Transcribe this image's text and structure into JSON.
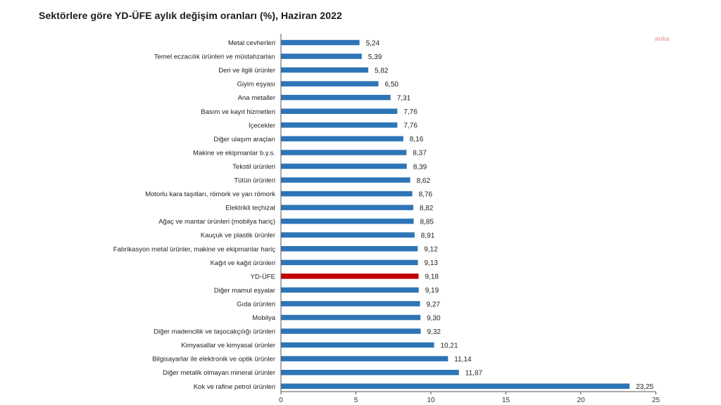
{
  "watermark": "anka",
  "chart_data": {
    "type": "bar",
    "orientation": "horizontal",
    "title": "Sektörlere göre YD-ÜFE aylık değişim oranları (%), Haziran 2022",
    "xlabel": "",
    "ylabel": "",
    "xlim": [
      0,
      25
    ],
    "xticks": [
      0,
      5,
      10,
      15,
      20,
      25
    ],
    "grid": false,
    "colors": {
      "default": "#2e75b6",
      "highlight": "#c00000"
    },
    "highlight_category": "YD-ÜFE",
    "categories": [
      "Metal cevherleri",
      "Temel eczacılık ürünleri ve müstahzarları",
      "Deri ve ilgili ürünler",
      "Giyim eşyası",
      "Ana metaller",
      "Basım ve kayıt hizmetleri",
      "İçecekler",
      "Diğer ulaşım araçları",
      "Makine ve ekipmanlar b.y.s.",
      "Tekstil ürünleri",
      "Tütün ürünleri",
      "Motorlu kara taşıtları, römork ve yarı römork",
      "Elektrikli teçhizat",
      "Ağaç ve mantar ürünleri (mobilya hariç)",
      "Kauçuk ve plastik ürünler",
      "Fabrikasyon metal ürünler, makine ve ekipmanlar hariç",
      "Kağıt ve kağıt ürünleri",
      "YD-ÜFE",
      "Diğer mamul eşyalar",
      "Gıda ürünleri",
      "Mobilya",
      "Diğer madencilik ve taşocakçılığı ürünleri",
      "Kimyasallar ve kimyasal ürünler",
      "Bilgisayarlar ile elektronik ve optik ürünler",
      "Diğer metalik olmayan mineral ürünler",
      "Kok ve rafine petrol ürünleri"
    ],
    "values": [
      5.24,
      5.39,
      5.82,
      6.5,
      7.31,
      7.76,
      7.76,
      8.16,
      8.37,
      8.39,
      8.62,
      8.76,
      8.82,
      8.85,
      8.91,
      9.12,
      9.13,
      9.18,
      9.19,
      9.27,
      9.3,
      9.32,
      10.21,
      11.14,
      11.87,
      23.25
    ],
    "value_labels": [
      "5,24",
      "5,39",
      "5,82",
      "6,50",
      "7,31",
      "7,76",
      "7,76",
      "8,16",
      "8,37",
      "8,39",
      "8,62",
      "8,76",
      "8,82",
      "8,85",
      "8,91",
      "9,12",
      "9,13",
      "9,18",
      "9,19",
      "9,27",
      "9,30",
      "9,32",
      "10,21",
      "11,14",
      "11,87",
      "23,25"
    ]
  }
}
